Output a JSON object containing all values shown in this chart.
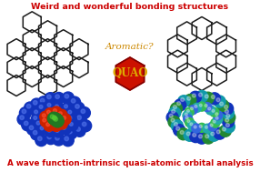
{
  "title_top": "Weird and wonderful bonding structures",
  "title_top_color": "#cc0000",
  "title_bottom": "A wave function-intrinsic quasi-atomic orbital analysis",
  "title_bottom_color": "#cc0000",
  "aromatic_text": "Aromatic?",
  "aromatic_color": "#cc8800",
  "quao_text": "QUAO",
  "quao_bg": "#cc1100",
  "quao_text_color": "#ddaa00",
  "bg_color": "#ffffff",
  "figsize": [
    2.86,
    1.89
  ],
  "dpi": 100
}
